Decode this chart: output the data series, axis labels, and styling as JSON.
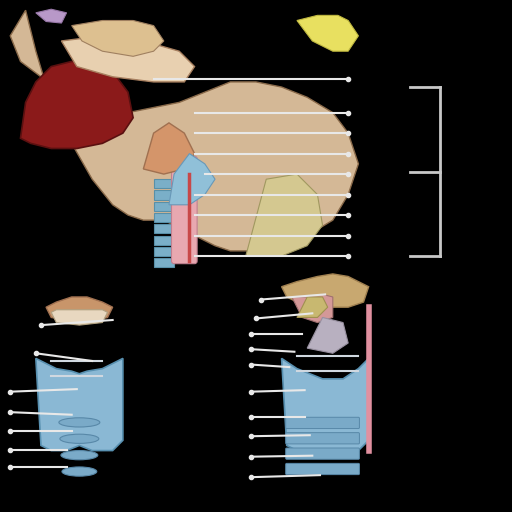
{
  "bg_color": "#000000",
  "head_skin_color": "#d4b896",
  "tongue_color": "#8b1a1a",
  "trachea_color": "#7aafc8",
  "trachea_outline": "#5890a8",
  "epiglottis_color": "#d4956a",
  "line_color": "#e8e8e8",
  "line_width": 1.5,
  "bracket_color": "#c8c8c8"
}
